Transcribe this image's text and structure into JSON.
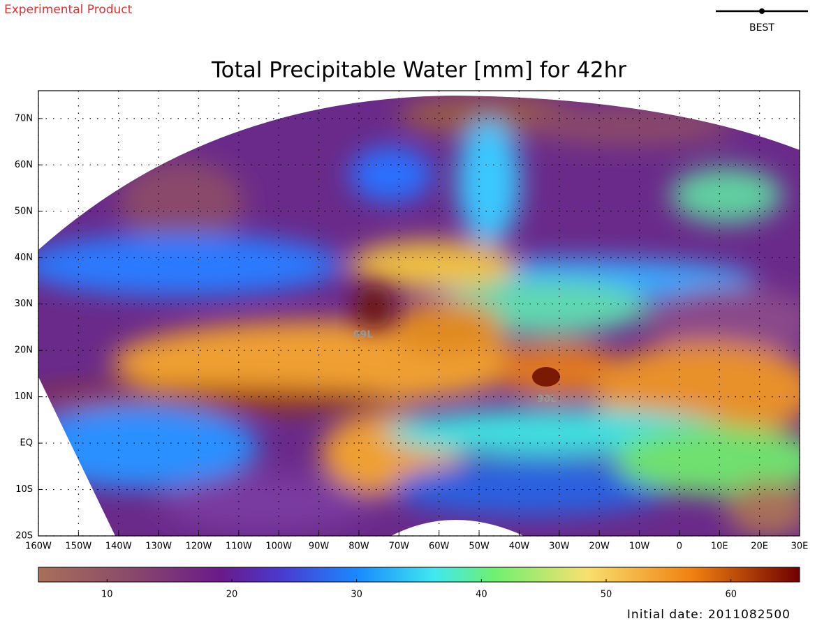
{
  "header": {
    "watermark": "Experimental Product",
    "legend_label": "BEST"
  },
  "map": {
    "title": "Total Precipitable Water [mm] for 42hr",
    "xlim": [
      -160,
      30
    ],
    "xticks": [
      {
        "value": -160,
        "label": "160W"
      },
      {
        "value": -150,
        "label": "150W"
      },
      {
        "value": -140,
        "label": "140W"
      },
      {
        "value": -130,
        "label": "130W"
      },
      {
        "value": -120,
        "label": "120W"
      },
      {
        "value": -110,
        "label": "110W"
      },
      {
        "value": -100,
        "label": "100W"
      },
      {
        "value": -90,
        "label": "90W"
      },
      {
        "value": -80,
        "label": "80W"
      },
      {
        "value": -70,
        "label": "70W"
      },
      {
        "value": -60,
        "label": "60W"
      },
      {
        "value": -50,
        "label": "50W"
      },
      {
        "value": -40,
        "label": "40W"
      },
      {
        "value": -30,
        "label": "30W"
      },
      {
        "value": -20,
        "label": "20W"
      },
      {
        "value": -10,
        "label": "10W"
      },
      0,
      {
        "value": 10,
        "label": "10E"
      },
      {
        "value": 20,
        "label": "20E"
      },
      {
        "value": 30,
        "label": "30E"
      }
    ],
    "ylim": [
      -20,
      76
    ],
    "yticks": [
      {
        "value": 70,
        "label": "70N"
      },
      {
        "value": 60,
        "label": "60N"
      },
      {
        "value": 50,
        "label": "50N"
      },
      {
        "value": 40,
        "label": "40N"
      },
      {
        "value": 30,
        "label": "30N"
      },
      {
        "value": 20,
        "label": "20N"
      },
      {
        "value": 10,
        "label": "10N"
      },
      {
        "value": 0,
        "label": "EQ"
      },
      {
        "value": -10,
        "label": "10S"
      },
      {
        "value": -20,
        "label": "20S"
      }
    ],
    "grid": true,
    "annotations": [
      "09L",
      "90L"
    ]
  },
  "colorbar": {
    "lim": [
      4.5,
      65.5
    ],
    "ticks": [
      10,
      20,
      30,
      40,
      50,
      60
    ]
  },
  "footer": {
    "initial_date": "Initial date: 2011082500"
  }
}
